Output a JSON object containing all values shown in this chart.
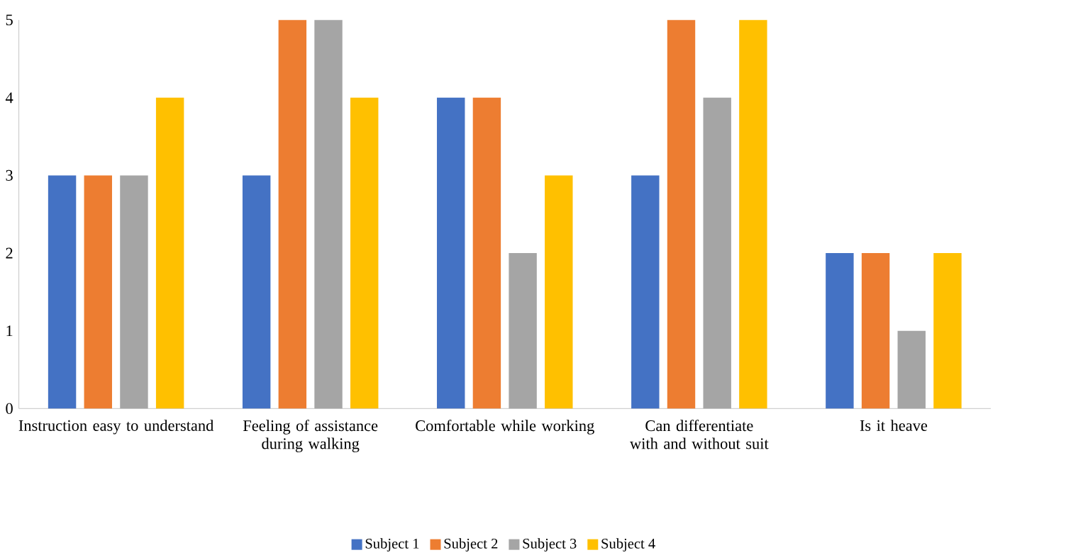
{
  "chart_data": {
    "type": "bar",
    "categories": [
      "Instruction easy to understand",
      "Feeling of assistance during walking",
      "Comfortable while working",
      "Can differentiate with and without suit",
      "Is it heave"
    ],
    "series": [
      {
        "name": "Subject 1",
        "color": "#4472c4",
        "values": [
          3,
          3,
          4,
          3,
          2
        ]
      },
      {
        "name": "Subject 2",
        "color": "#ed7d31",
        "values": [
          3,
          5,
          4,
          5,
          2
        ]
      },
      {
        "name": "Subject 3",
        "color": "#a5a5a5",
        "values": [
          3,
          5,
          2,
          4,
          1
        ]
      },
      {
        "name": "Subject 4",
        "color": "#ffc000",
        "values": [
          4,
          4,
          3,
          5,
          2
        ]
      }
    ],
    "ylim": [
      0,
      5
    ],
    "yticks": [
      0,
      1,
      2,
      3,
      4,
      5
    ],
    "legend": "bottom"
  }
}
